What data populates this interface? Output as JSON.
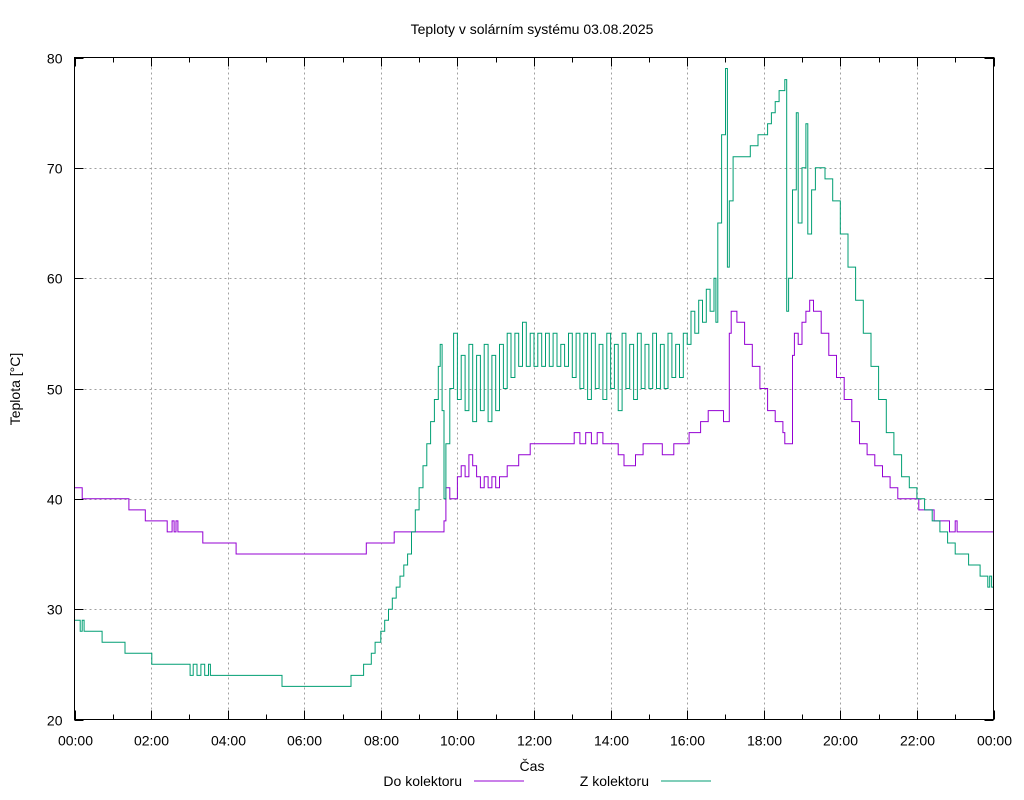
{
  "chart_data": {
    "type": "line",
    "title": "Teploty v solárním systému 03.08.2025",
    "xlabel": "Čas",
    "ylabel": "Teplota [°C]",
    "xlim": [
      0,
      24
    ],
    "ylim": [
      20,
      80
    ],
    "x_ticks": [
      "00:00",
      "02:00",
      "04:00",
      "06:00",
      "08:00",
      "10:00",
      "12:00",
      "14:00",
      "16:00",
      "18:00",
      "20:00",
      "22:00",
      "00:00"
    ],
    "y_ticks": [
      20,
      30,
      40,
      50,
      60,
      70,
      80
    ],
    "grid": true,
    "legend_position": "bottom",
    "series": [
      {
        "name": "Do kolektoru",
        "color": "#9400d3",
        "points": [
          [
            0.0,
            41
          ],
          [
            0.2,
            40
          ],
          [
            1.4,
            40
          ],
          [
            1.42,
            39
          ],
          [
            1.8,
            39
          ],
          [
            1.85,
            38
          ],
          [
            2.4,
            38
          ],
          [
            2.42,
            37
          ],
          [
            2.55,
            38
          ],
          [
            2.6,
            37
          ],
          [
            2.65,
            38
          ],
          [
            2.7,
            37
          ],
          [
            3.3,
            37
          ],
          [
            3.35,
            36
          ],
          [
            4.2,
            36
          ],
          [
            4.22,
            35
          ],
          [
            7.6,
            35
          ],
          [
            7.62,
            36
          ],
          [
            8.3,
            36
          ],
          [
            8.35,
            37
          ],
          [
            9.6,
            37
          ],
          [
            9.65,
            38
          ],
          [
            9.7,
            41
          ],
          [
            9.8,
            40
          ],
          [
            10.0,
            42
          ],
          [
            10.1,
            43
          ],
          [
            10.2,
            42
          ],
          [
            10.3,
            44
          ],
          [
            10.4,
            43
          ],
          [
            10.5,
            42
          ],
          [
            10.6,
            41
          ],
          [
            10.7,
            42
          ],
          [
            10.8,
            41
          ],
          [
            10.9,
            42
          ],
          [
            11.0,
            41
          ],
          [
            11.1,
            42
          ],
          [
            11.2,
            42
          ],
          [
            11.3,
            43
          ],
          [
            11.5,
            43
          ],
          [
            11.6,
            44
          ],
          [
            11.8,
            44
          ],
          [
            11.9,
            45
          ],
          [
            13.0,
            45
          ],
          [
            13.05,
            46
          ],
          [
            13.2,
            45
          ],
          [
            13.35,
            46
          ],
          [
            13.5,
            45
          ],
          [
            13.65,
            46
          ],
          [
            13.8,
            45
          ],
          [
            14.0,
            45
          ],
          [
            14.2,
            44
          ],
          [
            14.3,
            44
          ],
          [
            14.35,
            43
          ],
          [
            14.6,
            43
          ],
          [
            14.65,
            44
          ],
          [
            14.8,
            44
          ],
          [
            14.85,
            45
          ],
          [
            15.3,
            45
          ],
          [
            15.35,
            44
          ],
          [
            15.6,
            44
          ],
          [
            15.65,
            45
          ],
          [
            16.0,
            45
          ],
          [
            16.05,
            46
          ],
          [
            16.3,
            46
          ],
          [
            16.35,
            47
          ],
          [
            16.5,
            47
          ],
          [
            16.55,
            48
          ],
          [
            16.9,
            48
          ],
          [
            16.95,
            47
          ],
          [
            17.05,
            47
          ],
          [
            17.1,
            55
          ],
          [
            17.15,
            57
          ],
          [
            17.3,
            56
          ],
          [
            17.5,
            54
          ],
          [
            17.7,
            52
          ],
          [
            17.9,
            50
          ],
          [
            18.1,
            48
          ],
          [
            18.3,
            47
          ],
          [
            18.5,
            46
          ],
          [
            18.55,
            45
          ],
          [
            18.7,
            45
          ],
          [
            18.75,
            53
          ],
          [
            18.8,
            55
          ],
          [
            18.9,
            54
          ],
          [
            19.0,
            56
          ],
          [
            19.1,
            57
          ],
          [
            19.2,
            58
          ],
          [
            19.3,
            57
          ],
          [
            19.5,
            55
          ],
          [
            19.7,
            53
          ],
          [
            19.9,
            51
          ],
          [
            20.1,
            49
          ],
          [
            20.3,
            47
          ],
          [
            20.5,
            45
          ],
          [
            20.7,
            44
          ],
          [
            20.9,
            43
          ],
          [
            21.1,
            42
          ],
          [
            21.3,
            41
          ],
          [
            21.5,
            40
          ],
          [
            22.0,
            40
          ],
          [
            22.05,
            39
          ],
          [
            22.4,
            39
          ],
          [
            22.45,
            38
          ],
          [
            22.8,
            38
          ],
          [
            22.85,
            37
          ],
          [
            23.0,
            38
          ],
          [
            23.05,
            37
          ],
          [
            24.0,
            37
          ]
        ]
      },
      {
        "name": "Z kolektoru",
        "color": "#009e73",
        "points": [
          [
            0.0,
            29
          ],
          [
            0.15,
            28
          ],
          [
            0.2,
            29
          ],
          [
            0.25,
            28
          ],
          [
            0.7,
            28
          ],
          [
            0.72,
            27
          ],
          [
            1.3,
            27
          ],
          [
            1.32,
            26
          ],
          [
            2.0,
            26
          ],
          [
            2.02,
            25
          ],
          [
            3.0,
            25
          ],
          [
            3.02,
            24
          ],
          [
            3.1,
            25
          ],
          [
            3.2,
            24
          ],
          [
            3.3,
            25
          ],
          [
            3.4,
            24
          ],
          [
            3.5,
            25
          ],
          [
            3.55,
            24
          ],
          [
            5.4,
            24
          ],
          [
            5.42,
            23
          ],
          [
            7.2,
            23
          ],
          [
            7.22,
            24
          ],
          [
            7.5,
            24
          ],
          [
            7.55,
            25
          ],
          [
            7.7,
            25
          ],
          [
            7.75,
            26
          ],
          [
            7.85,
            27
          ],
          [
            8.0,
            28
          ],
          [
            8.1,
            29
          ],
          [
            8.2,
            30
          ],
          [
            8.3,
            31
          ],
          [
            8.4,
            32
          ],
          [
            8.5,
            33
          ],
          [
            8.6,
            34
          ],
          [
            8.7,
            35
          ],
          [
            8.8,
            37
          ],
          [
            8.9,
            39
          ],
          [
            9.0,
            41
          ],
          [
            9.1,
            43
          ],
          [
            9.2,
            45
          ],
          [
            9.3,
            47
          ],
          [
            9.4,
            49
          ],
          [
            9.5,
            52
          ],
          [
            9.55,
            54
          ],
          [
            9.6,
            48
          ],
          [
            9.65,
            40
          ],
          [
            9.7,
            45
          ],
          [
            9.8,
            50
          ],
          [
            9.9,
            55
          ],
          [
            10.0,
            49
          ],
          [
            10.1,
            53
          ],
          [
            10.2,
            48
          ],
          [
            10.3,
            54
          ],
          [
            10.4,
            47
          ],
          [
            10.5,
            53
          ],
          [
            10.6,
            48
          ],
          [
            10.7,
            54
          ],
          [
            10.8,
            47
          ],
          [
            10.9,
            53
          ],
          [
            11.0,
            48
          ],
          [
            11.1,
            54
          ],
          [
            11.2,
            50
          ],
          [
            11.3,
            55
          ],
          [
            11.4,
            51
          ],
          [
            11.5,
            55
          ],
          [
            11.6,
            52
          ],
          [
            11.7,
            56
          ],
          [
            11.8,
            52
          ],
          [
            11.9,
            55
          ],
          [
            12.0,
            52
          ],
          [
            12.1,
            55
          ],
          [
            12.2,
            52
          ],
          [
            12.3,
            55
          ],
          [
            12.4,
            52
          ],
          [
            12.5,
            55
          ],
          [
            12.6,
            52
          ],
          [
            12.7,
            54
          ],
          [
            12.8,
            52
          ],
          [
            12.9,
            55
          ],
          [
            13.0,
            51
          ],
          [
            13.1,
            55
          ],
          [
            13.2,
            50
          ],
          [
            13.3,
            55
          ],
          [
            13.4,
            49
          ],
          [
            13.5,
            55
          ],
          [
            13.6,
            50
          ],
          [
            13.7,
            54
          ],
          [
            13.8,
            49
          ],
          [
            13.9,
            55
          ],
          [
            14.0,
            50
          ],
          [
            14.1,
            54
          ],
          [
            14.2,
            48
          ],
          [
            14.3,
            55
          ],
          [
            14.4,
            50
          ],
          [
            14.5,
            54
          ],
          [
            14.6,
            49
          ],
          [
            14.7,
            55
          ],
          [
            14.8,
            50
          ],
          [
            14.9,
            54
          ],
          [
            15.0,
            50
          ],
          [
            15.1,
            55
          ],
          [
            15.2,
            50
          ],
          [
            15.3,
            54
          ],
          [
            15.4,
            50
          ],
          [
            15.5,
            55
          ],
          [
            15.6,
            51
          ],
          [
            15.7,
            54
          ],
          [
            15.8,
            51
          ],
          [
            15.9,
            55
          ],
          [
            16.0,
            54
          ],
          [
            16.1,
            57
          ],
          [
            16.2,
            55
          ],
          [
            16.3,
            58
          ],
          [
            16.4,
            56
          ],
          [
            16.5,
            59
          ],
          [
            16.6,
            57
          ],
          [
            16.7,
            60
          ],
          [
            16.75,
            56
          ],
          [
            16.8,
            65
          ],
          [
            16.9,
            73
          ],
          [
            17.0,
            79
          ],
          [
            17.05,
            61
          ],
          [
            17.1,
            67
          ],
          [
            17.2,
            71
          ],
          [
            17.6,
            71
          ],
          [
            17.65,
            72
          ],
          [
            17.8,
            72
          ],
          [
            17.85,
            73
          ],
          [
            18.0,
            73
          ],
          [
            18.1,
            74
          ],
          [
            18.2,
            75
          ],
          [
            18.3,
            76
          ],
          [
            18.4,
            77
          ],
          [
            18.5,
            77
          ],
          [
            18.55,
            78
          ],
          [
            18.6,
            57
          ],
          [
            18.65,
            60
          ],
          [
            18.75,
            68
          ],
          [
            18.85,
            75
          ],
          [
            18.9,
            65
          ],
          [
            19.0,
            70
          ],
          [
            19.1,
            74
          ],
          [
            19.15,
            64
          ],
          [
            19.25,
            68
          ],
          [
            19.35,
            70
          ],
          [
            19.55,
            70
          ],
          [
            19.6,
            69
          ],
          [
            19.8,
            67
          ],
          [
            20.0,
            64
          ],
          [
            20.2,
            61
          ],
          [
            20.4,
            58
          ],
          [
            20.6,
            55
          ],
          [
            20.8,
            52
          ],
          [
            21.0,
            49
          ],
          [
            21.2,
            46
          ],
          [
            21.4,
            44
          ],
          [
            21.6,
            42
          ],
          [
            21.8,
            41
          ],
          [
            22.0,
            40
          ],
          [
            22.2,
            39
          ],
          [
            22.4,
            38
          ],
          [
            22.6,
            37
          ],
          [
            22.8,
            36
          ],
          [
            23.0,
            35
          ],
          [
            23.3,
            35
          ],
          [
            23.35,
            34
          ],
          [
            23.6,
            34
          ],
          [
            23.65,
            33
          ],
          [
            23.8,
            33
          ],
          [
            23.85,
            32
          ],
          [
            23.9,
            33
          ],
          [
            23.95,
            32
          ],
          [
            24.0,
            32
          ]
        ]
      }
    ]
  }
}
